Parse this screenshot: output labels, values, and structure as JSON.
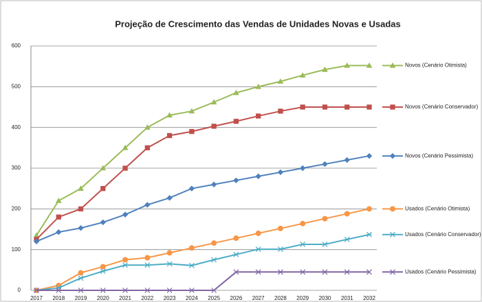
{
  "chart_data": {
    "type": "line",
    "title": "Projeção de Crescimento das Vendas de Unidades Novas e Usadas",
    "categories": [
      "2017",
      "2018",
      "2019",
      "2020",
      "2021",
      "2022",
      "2023",
      "2024",
      "2025",
      "2026",
      "2027",
      "2028",
      "2029",
      "2030",
      "2031",
      "2032"
    ],
    "ylim": [
      0,
      600
    ],
    "yticks": [
      0,
      100,
      200,
      300,
      400,
      500,
      600
    ],
    "grid": true,
    "series": [
      {
        "name": "Novos (Cenário Otimista)",
        "color": "#9bbb59",
        "marker": "triangle",
        "values": [
          135,
          220,
          250,
          300,
          350,
          400,
          430,
          440,
          462,
          485,
          500,
          513,
          528,
          542,
          552,
          552
        ]
      },
      {
        "name": "Novos (Cenário Conservador)",
        "color": "#c0504d",
        "marker": "square",
        "values": [
          125,
          180,
          200,
          250,
          300,
          350,
          380,
          390,
          403,
          415,
          428,
          440,
          450,
          450,
          450,
          450
        ]
      },
      {
        "name": "Novos (Cenário Pessimista)",
        "color": "#4f81bd",
        "marker": "diamond",
        "values": [
          120,
          143,
          153,
          167,
          186,
          210,
          227,
          250,
          260,
          270,
          280,
          290,
          300,
          310,
          320,
          330
        ]
      },
      {
        "name": "Usados (Cenário Otimista)",
        "color": "#f79646",
        "marker": "circle",
        "values": [
          0,
          12,
          43,
          58,
          75,
          80,
          92,
          104,
          116,
          128,
          140,
          152,
          164,
          176,
          188,
          200
        ]
      },
      {
        "name": "Usados (Cenário Conservador)",
        "color": "#4bacc6",
        "marker": "star",
        "values": [
          0,
          6,
          30,
          47,
          62,
          62,
          65,
          61,
          75,
          88,
          101,
          101,
          113,
          113,
          125,
          137
        ]
      },
      {
        "name": "Usados (Cenário Pessimista)",
        "color": "#8064a2",
        "marker": "x",
        "values": [
          0,
          0,
          0,
          0,
          0,
          0,
          0,
          0,
          0,
          45,
          45,
          45,
          45,
          45,
          45,
          45
        ]
      }
    ]
  }
}
